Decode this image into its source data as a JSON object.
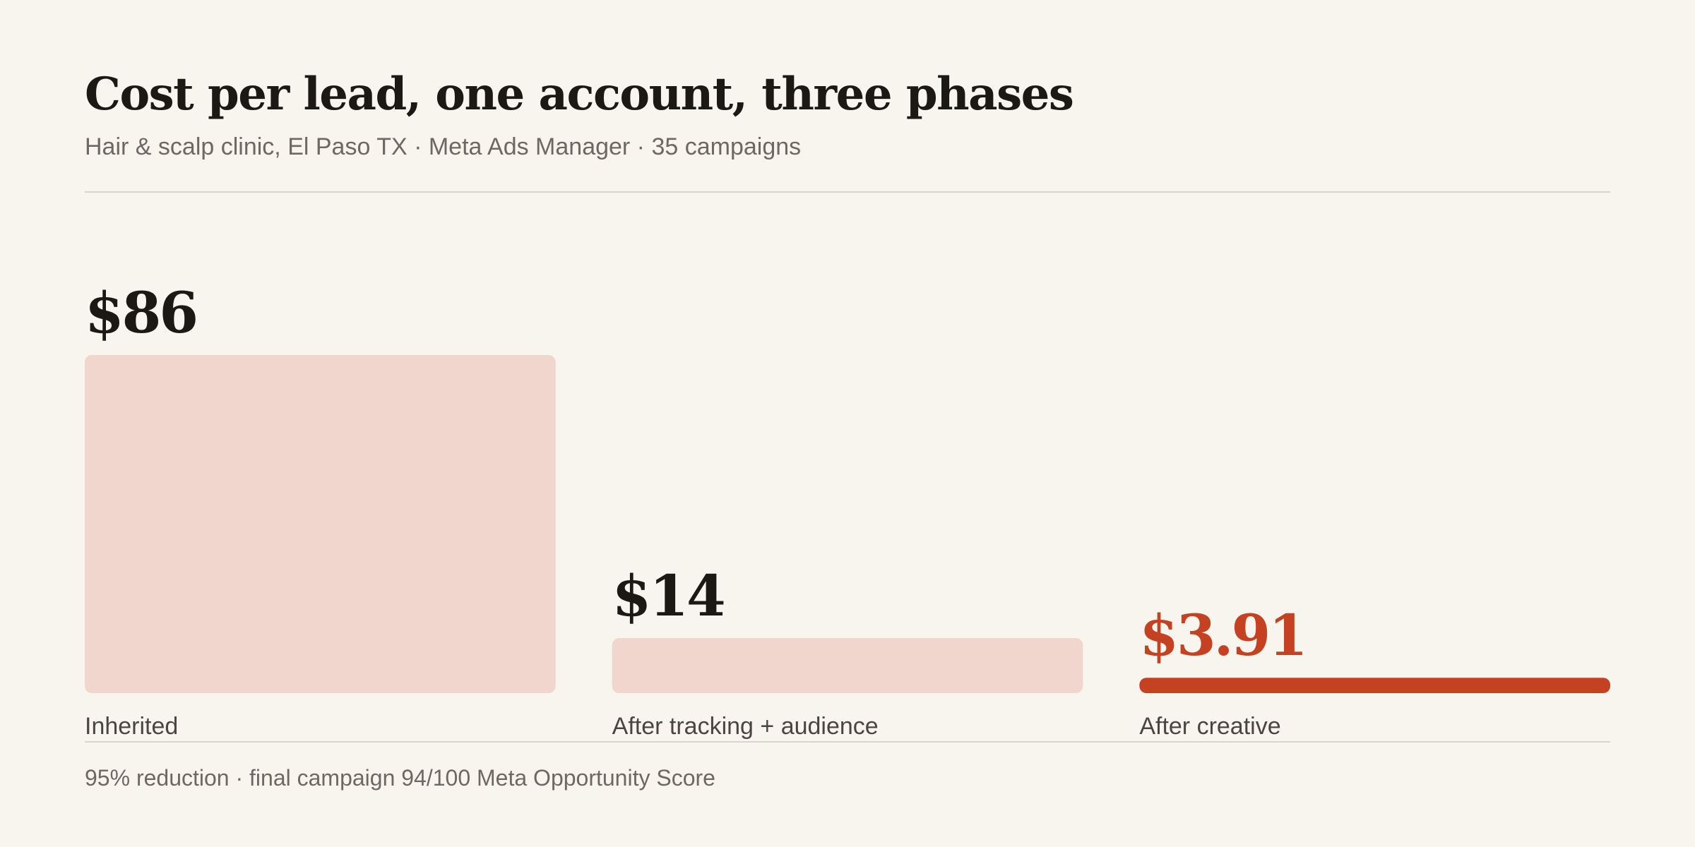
{
  "chart_data": {
    "type": "bar",
    "title": "Cost per lead, one account, three phases",
    "subtitle": "Hair & scalp clinic, El Paso TX · Meta Ads Manager · 35 campaigns",
    "categories": [
      "Inherited",
      "After tracking + audience",
      "After creative"
    ],
    "values": [
      86,
      14,
      3.91
    ],
    "value_labels": [
      "$86",
      "$14",
      "$3.91"
    ],
    "highlight_index": 2,
    "annotation": "95% reduction · final campaign 94/100 Meta Opportunity Score",
    "grid": false,
    "legend": "none"
  },
  "colors": {
    "bar": "#f0d6cc",
    "highlight": "#c44222",
    "value_text": "#1c1814",
    "highlight_text": "#c44222"
  }
}
